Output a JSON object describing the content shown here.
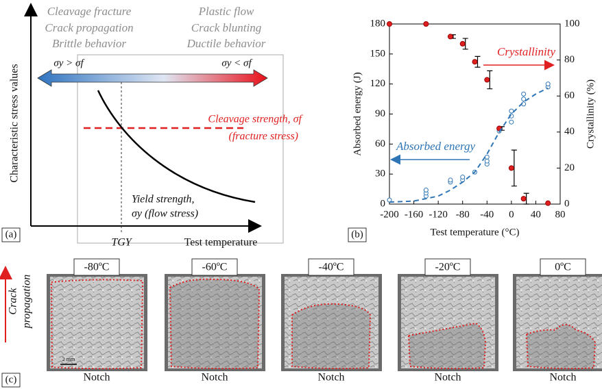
{
  "panel_a": {
    "label": "(a)",
    "brittle": [
      "Cleavage fracture",
      "Crack propagation",
      "Brittle behavior"
    ],
    "ductile": [
      "Plastic flow",
      "Crack blunting",
      "Ductile behavior"
    ],
    "brittle_condition": "σy > σf",
    "ductile_condition": "σy < σf",
    "y_axis_label": "Characteristic stress values",
    "x_axis_label": "Test temperature",
    "transition_label": "TGY",
    "cleavage_label": [
      "Cleavage strength, σf",
      "(fracture stress)"
    ],
    "yield_label": [
      "Yield strength,",
      "σy (flow stress)"
    ]
  },
  "chart_data": {
    "type": "scatter",
    "label": "(b)",
    "xlabel": "Test temperature (°C)",
    "ylabel": "Absorbed energy (J)",
    "y2label": "Crystallinity (%)",
    "xlim": [
      -200,
      80
    ],
    "xticks": [
      -200,
      -160,
      -120,
      -80,
      -40,
      0,
      40,
      80
    ],
    "ylim": [
      0,
      180
    ],
    "yticks": [
      0,
      30,
      60,
      90,
      120,
      150,
      180
    ],
    "y2lim": [
      0,
      100
    ],
    "y2ticks": [
      0,
      20,
      40,
      60,
      80,
      100
    ],
    "series": [
      {
        "name": "Absorbed energy",
        "color": "#2e75b6",
        "marker": "hollow",
        "x": [
          -200,
          -140,
          -140,
          -140,
          -100,
          -100,
          -80,
          -80,
          -60,
          -40,
          -40,
          -40,
          -20,
          -20,
          0,
          0,
          0,
          20,
          20,
          20,
          60,
          60
        ],
        "values": [
          4,
          8,
          11,
          14,
          22,
          24,
          24,
          27,
          32,
          40,
          43,
          47,
          73,
          76,
          82,
          88,
          93,
          100,
          105,
          110,
          117,
          120
        ]
      },
      {
        "name": "Crystallinity",
        "color": "#e02020",
        "axis": "y2",
        "marker": "filled",
        "x": [
          -200,
          -140,
          -100,
          -80,
          -60,
          -40,
          -20,
          0,
          20,
          60
        ],
        "values": [
          100,
          100,
          93,
          89,
          79,
          69,
          42,
          20,
          3,
          0.5
        ],
        "errors": [
          0,
          0,
          1,
          3,
          3,
          5,
          1,
          10,
          3,
          0
        ]
      },
      {
        "color": "#2e75b6",
        "line": "dashed",
        "x": [
          -200,
          -160,
          -120,
          -100,
          -80,
          -60,
          -40,
          -20,
          0,
          20,
          40,
          60
        ],
        "values": [
          2,
          3,
          8,
          14,
          22,
          32,
          50,
          72,
          90,
          102,
          110,
          116
        ]
      }
    ]
  },
  "panel_c": {
    "label": "(c)",
    "direction_label": [
      "Crack",
      "propagation"
    ],
    "scale_bar": "2 mm",
    "specimens": [
      {
        "temperature": "-80ºC",
        "base": "Notch"
      },
      {
        "temperature": "-60ºC",
        "base": "Notch"
      },
      {
        "temperature": "-40ºC",
        "base": "Notch"
      },
      {
        "temperature": "-20ºC",
        "base": "Notch"
      },
      {
        "temperature": "0ºC",
        "base": "Notch"
      }
    ]
  }
}
